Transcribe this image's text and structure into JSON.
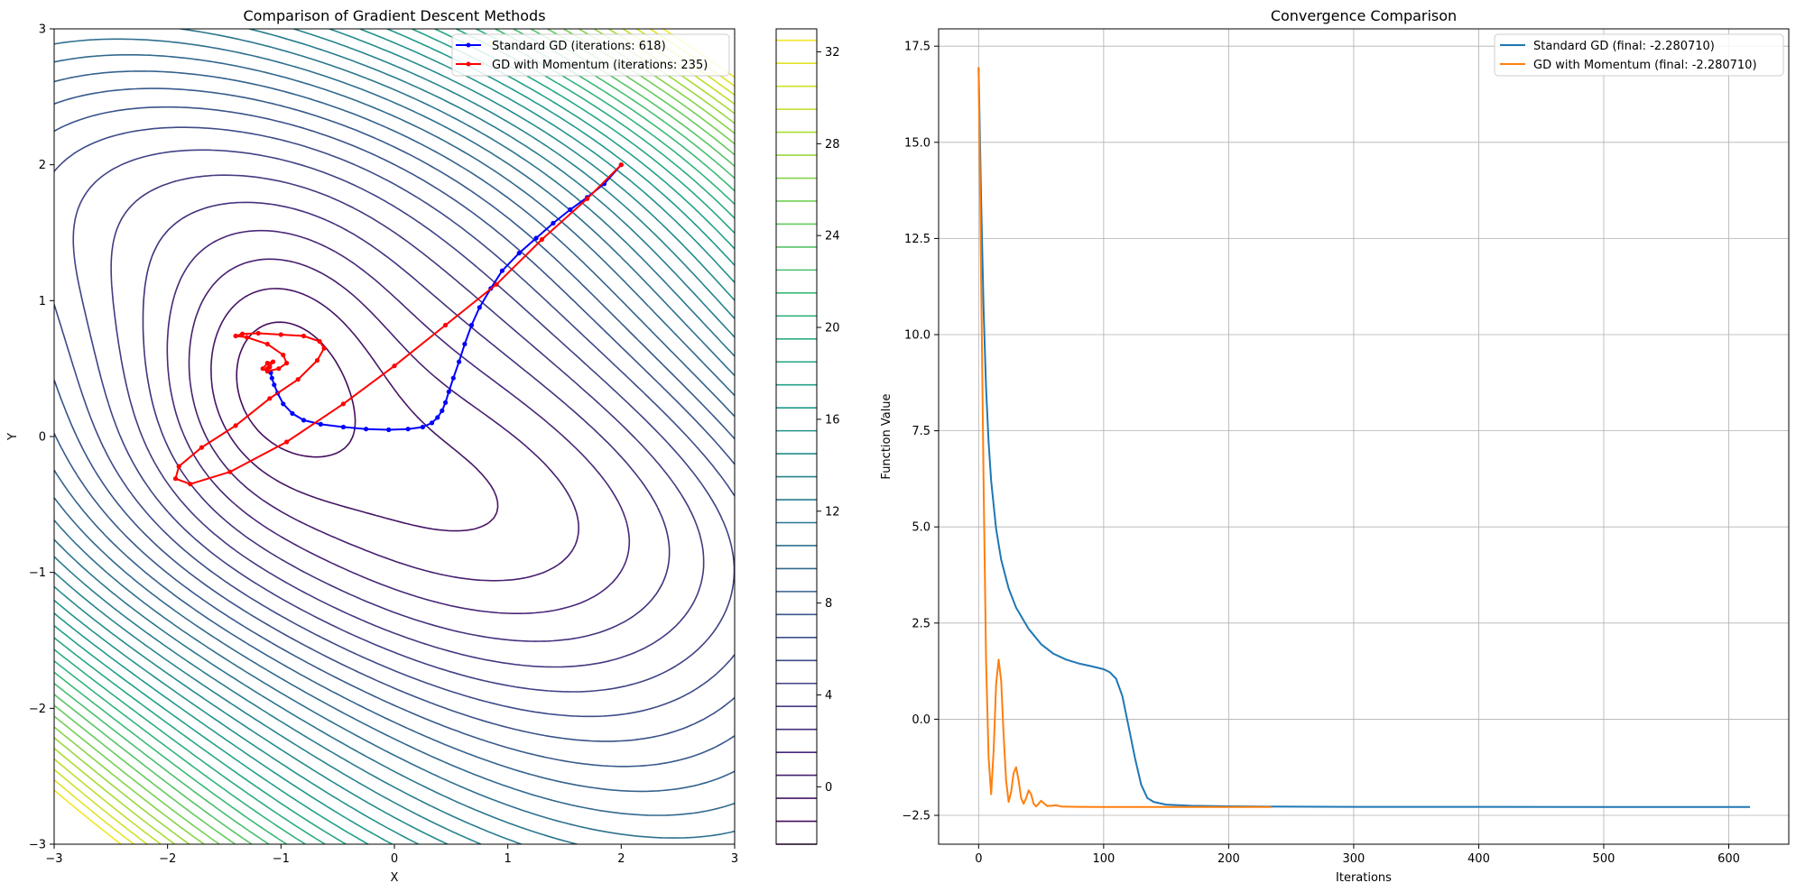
{
  "chart_data": [
    {
      "type": "contour",
      "title": "Comparison of Gradient Descent Methods",
      "xlabel": "X",
      "ylabel": "Y",
      "xlim": [
        -3,
        3
      ],
      "ylim": [
        -3,
        3
      ],
      "xticks": [
        "−3",
        "−2",
        "−1",
        "0",
        "1",
        "2",
        "3"
      ],
      "yticks": [
        "−3",
        "−2",
        "−1",
        "0",
        "1",
        "2",
        "3"
      ],
      "colormap": "viridis",
      "contour_range": [
        -2.5,
        33
      ],
      "colorbar_ticks": [
        "0",
        "4",
        "8",
        "12",
        "16",
        "20",
        "24",
        "28",
        "32"
      ],
      "colorbar_tick_values": [
        0,
        4,
        8,
        12,
        16,
        20,
        24,
        28,
        32
      ],
      "legend_position": "upper right",
      "series": [
        {
          "name": "Standard GD (iterations: 618)",
          "color": "#0000ff",
          "x": [
            2.0,
            1.85,
            1.7,
            1.55,
            1.4,
            1.25,
            1.1,
            0.95,
            0.85,
            0.75,
            0.68,
            0.62,
            0.57,
            0.52,
            0.48,
            0.45,
            0.42,
            0.38,
            0.33,
            0.25,
            0.12,
            -0.05,
            -0.25,
            -0.45,
            -0.65,
            -0.8,
            -0.9,
            -0.98,
            -1.03,
            -1.06,
            -1.08,
            -1.09
          ],
          "y": [
            2.0,
            1.86,
            1.76,
            1.67,
            1.57,
            1.46,
            1.35,
            1.22,
            1.09,
            0.95,
            0.82,
            0.68,
            0.55,
            0.43,
            0.33,
            0.25,
            0.19,
            0.14,
            0.1,
            0.07,
            0.055,
            0.05,
            0.055,
            0.07,
            0.09,
            0.12,
            0.17,
            0.24,
            0.32,
            0.38,
            0.43,
            0.47
          ]
        },
        {
          "name": "GD with Momentum (iterations: 235)",
          "color": "#ff0000",
          "x": [
            2.0,
            1.7,
            1.3,
            0.9,
            0.45,
            0.0,
            -0.45,
            -0.95,
            -1.45,
            -1.8,
            -1.93,
            -1.9,
            -1.7,
            -1.4,
            -1.1,
            -0.85,
            -0.68,
            -0.62,
            -0.66,
            -0.8,
            -1.0,
            -1.2,
            -1.34,
            -1.4,
            -1.3,
            -1.12,
            -0.98,
            -0.95,
            -1.02,
            -1.12,
            -1.16,
            -1.12,
            -1.07,
            -1.1,
            -1.12,
            -1.1
          ],
          "y": [
            2.0,
            1.75,
            1.45,
            1.12,
            0.82,
            0.52,
            0.24,
            -0.04,
            -0.26,
            -0.35,
            -0.31,
            -0.22,
            -0.08,
            0.08,
            0.28,
            0.42,
            0.56,
            0.65,
            0.7,
            0.74,
            0.75,
            0.76,
            0.755,
            0.74,
            0.73,
            0.68,
            0.6,
            0.54,
            0.5,
            0.48,
            0.5,
            0.54,
            0.55,
            0.52,
            0.5,
            0.51
          ]
        }
      ]
    },
    {
      "type": "line",
      "title": "Convergence Comparison",
      "xlabel": "Iterations",
      "ylabel": "Function Value",
      "xlim": [
        -32,
        648
      ],
      "ylim": [
        -3.25,
        17.95
      ],
      "xticks": [
        "0",
        "100",
        "200",
        "300",
        "400",
        "500",
        "600"
      ],
      "yticks": [
        "−2.5",
        "0.0",
        "2.5",
        "5.0",
        "7.5",
        "10.0",
        "12.5",
        "15.0",
        "17.5"
      ],
      "grid": true,
      "legend_position": "upper right",
      "series": [
        {
          "name": "Standard GD (final: -2.280710)",
          "color": "#1f77b4",
          "x": [
            0,
            2,
            4,
            6,
            8,
            10,
            14,
            18,
            24,
            30,
            40,
            50,
            60,
            70,
            80,
            90,
            100,
            105,
            110,
            115,
            120,
            125,
            130,
            135,
            140,
            150,
            170,
            200,
            250,
            300,
            400,
            500,
            617
          ],
          "y": [
            16.95,
            13.5,
            10.6,
            8.6,
            7.2,
            6.2,
            4.95,
            4.15,
            3.4,
            2.9,
            2.35,
            1.95,
            1.7,
            1.55,
            1.45,
            1.38,
            1.3,
            1.22,
            1.05,
            0.6,
            -0.2,
            -1.0,
            -1.7,
            -2.05,
            -2.15,
            -2.22,
            -2.25,
            -2.265,
            -2.275,
            -2.278,
            -2.28,
            -2.2807,
            -2.2807
          ]
        },
        {
          "name": "GD with Momentum (final: -2.280710)",
          "color": "#ff7f0e",
          "x": [
            0,
            2,
            4,
            6,
            8,
            10,
            12,
            14,
            16,
            18,
            20,
            22,
            24,
            26,
            28,
            30,
            32,
            34,
            36,
            38,
            40,
            42,
            44,
            46,
            48,
            50,
            52,
            55,
            58,
            62,
            66,
            70,
            80,
            100,
            150,
            234
          ],
          "y": [
            16.95,
            11.5,
            6.0,
            1.5,
            -1.0,
            -1.95,
            -0.8,
            0.9,
            1.55,
            1.0,
            -0.4,
            -1.6,
            -2.15,
            -1.9,
            -1.4,
            -1.25,
            -1.6,
            -2.05,
            -2.2,
            -2.05,
            -1.85,
            -1.95,
            -2.2,
            -2.27,
            -2.2,
            -2.12,
            -2.18,
            -2.26,
            -2.25,
            -2.24,
            -2.27,
            -2.275,
            -2.28,
            -2.2805,
            -2.2807,
            -2.2807
          ]
        }
      ]
    }
  ]
}
